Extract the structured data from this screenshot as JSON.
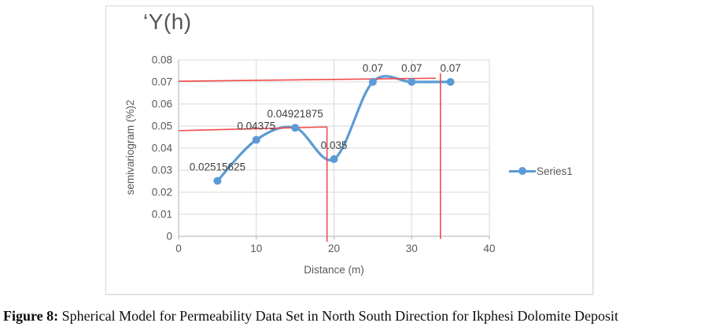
{
  "figure": {
    "caption_prefix": "Figure 8:",
    "caption_text": " Spherical Model for Permeability Data Set in North South Direction for Ikphesi Dolomite Deposit"
  },
  "chart_data": {
    "type": "line",
    "title": "‘Y(h)",
    "xlabel": "Distance (m)",
    "ylabel": "semivariogram (%)2",
    "xlim": [
      0,
      40
    ],
    "ylim": [
      0,
      0.08
    ],
    "grid": true,
    "x_ticks": {
      "values": [
        0,
        10,
        20,
        30,
        40
      ],
      "labels": [
        "0",
        "10",
        "20",
        "30",
        "40"
      ]
    },
    "y_ticks": {
      "values": [
        0,
        0.01,
        0.02,
        0.03,
        0.04,
        0.05,
        0.06,
        0.07,
        0.08
      ],
      "labels": [
        "0",
        "0.01",
        "0.02",
        "0.03",
        "0.04",
        "0.05",
        "0.06",
        "0.07",
        "0.08"
      ]
    },
    "legend": {
      "position": "right",
      "entries": [
        "Series1"
      ]
    },
    "series": [
      {
        "name": "Series1",
        "color": "#5b9bd5",
        "marker": "circle",
        "smooth": true,
        "x": [
          5,
          10,
          15,
          20,
          25,
          30,
          35
        ],
        "y": [
          0.02515625,
          0.04375,
          0.04921875,
          0.035,
          0.07,
          0.07,
          0.07
        ],
        "point_labels": [
          "0.02515625",
          "0.04375",
          "0.04921875",
          "0.035",
          "0.07",
          "0.07",
          "0.07"
        ]
      }
    ],
    "overlay": {
      "name": "spherical model fit lines",
      "color": "#f24a4a",
      "segments": [
        [
          [
            0,
            0.0703
          ],
          [
            33.1,
            0.0717
          ]
        ],
        [
          [
            33.7,
            0.0739
          ],
          [
            33.7,
            -0.0011
          ]
        ],
        [
          [
            0,
            0.0479
          ],
          [
            19.1,
            0.0496
          ]
        ],
        [
          [
            19.1,
            0.0496
          ],
          [
            19.1,
            -0.0025
          ]
        ]
      ]
    },
    "colors": {
      "series_blue": "#5b9bd5",
      "model_red": "#f24a4a",
      "grid": "#d9d9d9",
      "axis": "#bfbfbf",
      "tick_text": "#595959",
      "data_label_text": "#404040"
    }
  }
}
